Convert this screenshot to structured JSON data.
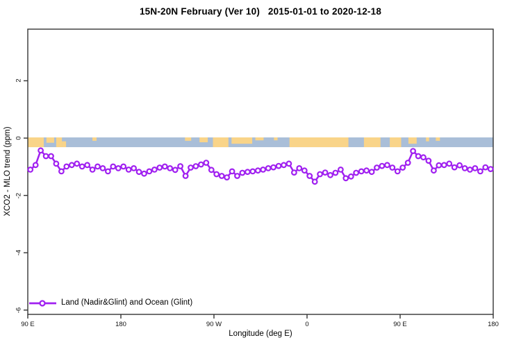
{
  "chart_data": {
    "type": "line",
    "title": "15N-20N February (Ver 10)   2015-01-01 to 2020-12-18",
    "xlabel": "Longitude (deg E)",
    "ylabel": "XCO2 - MLO trend (ppm)",
    "xlim": [
      90,
      540
    ],
    "ylim": [
      -6.2,
      3.8
    ],
    "grid": false,
    "legend_position": "bottom-left",
    "x_ticks": [
      {
        "label": "90 E",
        "lon": 90
      },
      {
        "label": "180",
        "lon": 180
      },
      {
        "label": "90 W",
        "lon": 270
      },
      {
        "label": "0",
        "lon": 360
      },
      {
        "label": "90 E",
        "lon": 450
      },
      {
        "label": "180",
        "lon": 540
      }
    ],
    "y_ticks": [
      {
        "label": "2",
        "value": 2
      },
      {
        "label": "0",
        "value": 0
      },
      {
        "label": "-2",
        "value": -2
      },
      {
        "label": "-4",
        "value": -4
      },
      {
        "label": "-6",
        "value": -6
      }
    ],
    "x_start": 92.5,
    "x_step": 5,
    "series": [
      {
        "name": "Land (Nadir&Glint) and Ocean (Glint)",
        "color": "#a020f0",
        "marker": "open-circle",
        "values": [
          -1.1,
          -0.94,
          -0.43,
          -0.63,
          -0.63,
          -0.89,
          -1.16,
          -0.99,
          -0.94,
          -0.89,
          -0.99,
          -0.94,
          -1.1,
          -0.99,
          -1.05,
          -1.16,
          -0.99,
          -1.05,
          -0.99,
          -1.1,
          -1.05,
          -1.18,
          -1.24,
          -1.16,
          -1.1,
          -1.03,
          -0.99,
          -1.05,
          -1.11,
          -0.98,
          -1.32,
          -1.03,
          -0.98,
          -0.92,
          -0.86,
          -1.11,
          -1.26,
          -1.32,
          -1.37,
          -1.16,
          -1.32,
          -1.21,
          -1.18,
          -1.16,
          -1.13,
          -1.1,
          -1.05,
          -1.02,
          -0.97,
          -0.94,
          -0.89,
          -1.2,
          -1.05,
          -1.13,
          -1.32,
          -1.52,
          -1.26,
          -1.2,
          -1.29,
          -1.21,
          -1.1,
          -1.4,
          -1.34,
          -1.21,
          -1.16,
          -1.13,
          -1.18,
          -1.03,
          -0.97,
          -0.94,
          -1.03,
          -1.16,
          -1.03,
          -0.86,
          -0.45,
          -0.63,
          -0.67,
          -0.79,
          -1.13,
          -0.95,
          -0.94,
          -0.89,
          -1.02,
          -0.95,
          -1.05,
          -1.1,
          -1.05,
          -1.16,
          -1.02,
          -1.08
        ]
      }
    ],
    "map_band": {
      "description": "land/ocean strip of the 15N-20N latitude band",
      "ocean_color": "#a9bed8",
      "land_color": "#f9d489",
      "y_top": 0.0,
      "y_bottom": -0.34,
      "land_patches": [
        {
          "from": 90,
          "to": 105.5,
          "top": 0,
          "h": 1
        },
        {
          "from": 108,
          "to": 115.5,
          "top": 0,
          "h": 0.55
        },
        {
          "from": 117.5,
          "to": 123,
          "top": 0,
          "h": 1
        },
        {
          "from": 123,
          "to": 127,
          "top": 0.4,
          "h": 0.6
        },
        {
          "from": 152.5,
          "to": 156.5,
          "top": 0,
          "h": 0.35
        },
        {
          "from": 242,
          "to": 248,
          "top": 0,
          "h": 0.35
        },
        {
          "from": 256,
          "to": 264,
          "top": 0,
          "h": 0.5
        },
        {
          "from": 269,
          "to": 284,
          "top": 0,
          "h": 1
        },
        {
          "from": 287,
          "to": 307,
          "top": 0,
          "h": 0.65
        },
        {
          "from": 310,
          "to": 318,
          "top": 0,
          "h": 0.3
        },
        {
          "from": 328,
          "to": 331.5,
          "top": 0,
          "h": 0.3
        },
        {
          "from": 343,
          "to": 400,
          "top": 0,
          "h": 1
        },
        {
          "from": 415,
          "to": 431,
          "top": 0,
          "h": 1
        },
        {
          "from": 440,
          "to": 451,
          "top": 0,
          "h": 1
        },
        {
          "from": 458,
          "to": 466,
          "top": 0,
          "h": 0.65
        },
        {
          "from": 475,
          "to": 478,
          "top": 0,
          "h": 0.4
        },
        {
          "from": 484.5,
          "to": 488.5,
          "top": 0,
          "h": 0.35
        }
      ]
    }
  },
  "colors": {
    "background": "#ffffff",
    "axis": "#333333",
    "series_purple": "#a020f0",
    "ocean_blue": "#a9bed8",
    "land_tan": "#f9d489"
  }
}
